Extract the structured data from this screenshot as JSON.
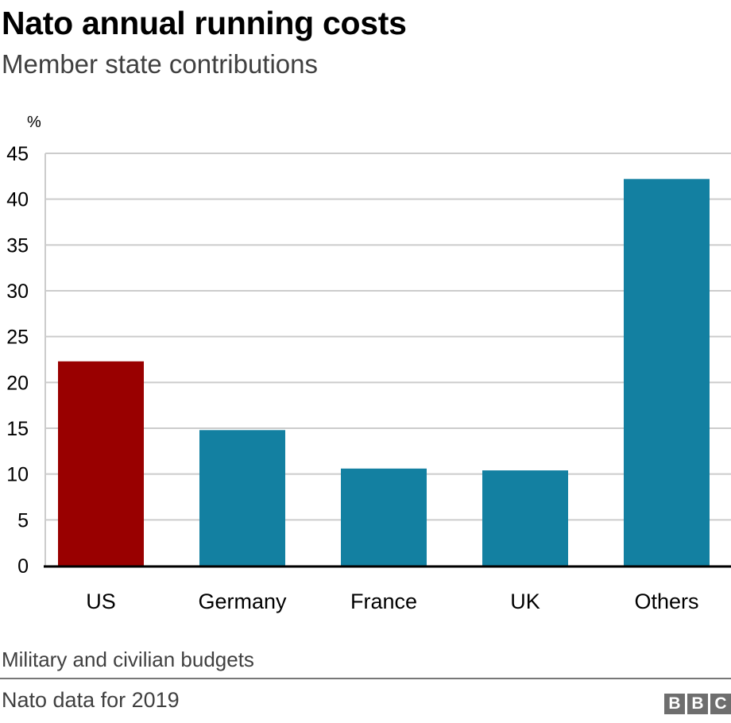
{
  "header": {
    "title": "Nato annual running costs",
    "subtitle": "Member state contributions"
  },
  "footer": {
    "note": "Military and civilian budgets",
    "source": "Nato data for 2019",
    "logo": [
      "B",
      "B",
      "C"
    ]
  },
  "colors": {
    "highlight": "#990000",
    "default": "#1380A1",
    "grid": "#cccccc",
    "axis": "#000000"
  },
  "chart_data": {
    "type": "bar",
    "title": "Nato annual running costs",
    "subtitle": "Member state contributions",
    "xlabel": "",
    "ylabel": "%",
    "categories": [
      "US",
      "Germany",
      "France",
      "UK",
      "Others"
    ],
    "values": [
      22.3,
      14.8,
      10.6,
      10.4,
      42.2
    ],
    "bar_colors": [
      "#990000",
      "#1380A1",
      "#1380A1",
      "#1380A1",
      "#1380A1"
    ],
    "ylim": [
      0,
      45
    ],
    "yticks": [
      0,
      5,
      10,
      15,
      20,
      25,
      30,
      35,
      40,
      45
    ],
    "grid": true,
    "legend": "none"
  }
}
